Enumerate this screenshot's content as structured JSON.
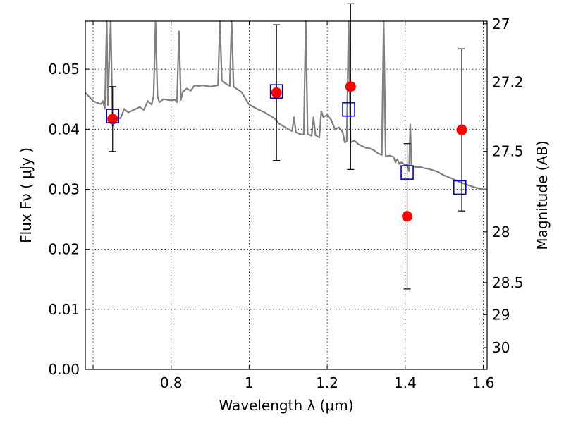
{
  "chart_data": {
    "type": "scatter",
    "xlabel": "Wavelength  λ (μm)",
    "ylabel": "Flux  Fν  ( μJy )",
    "ylabel_right": "Magnitude (AB)",
    "xlim": [
      0.58,
      1.61
    ],
    "ylim": [
      0.0,
      0.058
    ],
    "grid": true,
    "x_ticks": [
      {
        "value": 0.6,
        "label": ""
      },
      {
        "value": 0.8,
        "label": "0.8"
      },
      {
        "value": 1.0,
        "label": "1"
      },
      {
        "value": 1.2,
        "label": "1.2"
      },
      {
        "value": 1.4,
        "label": "1.4"
      },
      {
        "value": 1.6,
        "label": "1.6"
      }
    ],
    "y_ticks": [
      {
        "value": 0.0,
        "label": "0.00"
      },
      {
        "value": 0.01,
        "label": "0.01"
      },
      {
        "value": 0.02,
        "label": "0.02"
      },
      {
        "value": 0.03,
        "label": "0.03"
      },
      {
        "value": 0.04,
        "label": "0.04"
      },
      {
        "value": 0.05,
        "label": "0.05"
      }
    ],
    "right_ticks": [
      {
        "mag": 27,
        "label": "27"
      },
      {
        "mag": 27.2,
        "label": "27.2"
      },
      {
        "mag": 27.5,
        "label": "27.5"
      },
      {
        "mag": 28,
        "label": "28"
      },
      {
        "mag": 28.5,
        "label": "28.5"
      },
      {
        "mag": 29,
        "label": "29"
      },
      {
        "mag": 30,
        "label": "30"
      }
    ],
    "series": [
      {
        "kind": "spectrum",
        "color": "#808080",
        "points": [
          [
            0.58,
            0.0461
          ],
          [
            0.6,
            0.0447
          ],
          [
            0.61,
            0.0444
          ],
          [
            0.62,
            0.0442
          ],
          [
            0.625,
            0.0447
          ],
          [
            0.63,
            0.0434
          ],
          [
            0.635,
            0.058
          ],
          [
            0.638,
            0.044
          ],
          [
            0.642,
            0.0525
          ],
          [
            0.645,
            0.058
          ],
          [
            0.65,
            0.0405
          ],
          [
            0.66,
            0.042
          ],
          [
            0.67,
            0.0418
          ],
          [
            0.68,
            0.0434
          ],
          [
            0.69,
            0.0428
          ],
          [
            0.7,
            0.0431
          ],
          [
            0.72,
            0.0437
          ],
          [
            0.73,
            0.0432
          ],
          [
            0.74,
            0.0447
          ],
          [
            0.75,
            0.0441
          ],
          [
            0.755,
            0.0455
          ],
          [
            0.76,
            0.0578
          ],
          [
            0.765,
            0.0455
          ],
          [
            0.77,
            0.0445
          ],
          [
            0.78,
            0.045
          ],
          [
            0.8,
            0.0448
          ],
          [
            0.81,
            0.0449
          ],
          [
            0.815,
            0.0445
          ],
          [
            0.82,
            0.0563
          ],
          [
            0.825,
            0.0449
          ],
          [
            0.83,
            0.0462
          ],
          [
            0.84,
            0.0468
          ],
          [
            0.85,
            0.0464
          ],
          [
            0.86,
            0.0473
          ],
          [
            0.87,
            0.0472
          ],
          [
            0.88,
            0.0473
          ],
          [
            0.9,
            0.0471
          ],
          [
            0.92,
            0.0473
          ],
          [
            0.925,
            0.058
          ],
          [
            0.93,
            0.0481
          ],
          [
            0.94,
            0.0476
          ],
          [
            0.95,
            0.0472
          ],
          [
            0.955,
            0.058
          ],
          [
            0.96,
            0.0471
          ],
          [
            0.98,
            0.0462
          ],
          [
            1.0,
            0.0441
          ],
          [
            1.02,
            0.0434
          ],
          [
            1.04,
            0.0428
          ],
          [
            1.06,
            0.042
          ],
          [
            1.07,
            0.0415
          ],
          [
            1.075,
            0.041
          ],
          [
            1.08,
            0.0408
          ],
          [
            1.09,
            0.0404
          ],
          [
            1.1,
            0.04
          ],
          [
            1.11,
            0.0397
          ],
          [
            1.115,
            0.042
          ],
          [
            1.12,
            0.0395
          ],
          [
            1.13,
            0.0392
          ],
          [
            1.14,
            0.0391
          ],
          [
            1.145,
            0.058
          ],
          [
            1.15,
            0.0392
          ],
          [
            1.16,
            0.0389
          ],
          [
            1.165,
            0.042
          ],
          [
            1.17,
            0.039
          ],
          [
            1.18,
            0.0386
          ],
          [
            1.185,
            0.043
          ],
          [
            1.19,
            0.042
          ],
          [
            1.2,
            0.0424
          ],
          [
            1.21,
            0.0416
          ],
          [
            1.22,
            0.04
          ],
          [
            1.23,
            0.0403
          ],
          [
            1.24,
            0.0395
          ],
          [
            1.245,
            0.0378
          ],
          [
            1.25,
            0.038
          ],
          [
            1.255,
            0.058
          ],
          [
            1.26,
            0.0378
          ],
          [
            1.27,
            0.0381
          ],
          [
            1.28,
            0.0375
          ],
          [
            1.29,
            0.0372
          ],
          [
            1.3,
            0.0369
          ],
          [
            1.31,
            0.0368
          ],
          [
            1.32,
            0.0365
          ],
          [
            1.33,
            0.036
          ],
          [
            1.34,
            0.0357
          ],
          [
            1.345,
            0.058
          ],
          [
            1.35,
            0.0355
          ],
          [
            1.36,
            0.0356
          ],
          [
            1.37,
            0.0354
          ],
          [
            1.375,
            0.0345
          ],
          [
            1.38,
            0.035
          ],
          [
            1.385,
            0.0342
          ],
          [
            1.39,
            0.0345
          ],
          [
            1.4,
            0.034
          ],
          [
            1.405,
            0.0342
          ],
          [
            1.41,
            0.033
          ],
          [
            1.413,
            0.0408
          ],
          [
            1.416,
            0.034
          ],
          [
            1.42,
            0.0338
          ],
          [
            1.43,
            0.0337
          ],
          [
            1.44,
            0.0337
          ],
          [
            1.45,
            0.0335
          ],
          [
            1.46,
            0.0334
          ],
          [
            1.48,
            0.033
          ],
          [
            1.5,
            0.0323
          ],
          [
            1.52,
            0.0318
          ],
          [
            1.54,
            0.0312
          ],
          [
            1.56,
            0.0307
          ],
          [
            1.58,
            0.0303
          ],
          [
            1.59,
            0.0301
          ],
          [
            1.6,
            0.03
          ],
          [
            1.61,
            0.03
          ]
        ]
      },
      {
        "kind": "measured",
        "color": "#ff0000",
        "marker": "circle",
        "points": [
          {
            "x": 0.65,
            "y": 0.0417,
            "err": 0.0054
          },
          {
            "x": 1.07,
            "y": 0.0461,
            "err": 0.0113
          },
          {
            "x": 1.26,
            "y": 0.0471,
            "err": 0.0138
          },
          {
            "x": 1.405,
            "y": 0.0255,
            "err": 0.0121
          },
          {
            "x": 1.545,
            "y": 0.0399,
            "err": 0.0135
          }
        ]
      },
      {
        "kind": "model",
        "color": "#0000cc",
        "marker": "square",
        "points": [
          {
            "x": 0.65,
            "y": 0.0422
          },
          {
            "x": 1.07,
            "y": 0.0463
          },
          {
            "x": 1.255,
            "y": 0.0433
          },
          {
            "x": 1.405,
            "y": 0.0328
          },
          {
            "x": 1.54,
            "y": 0.0303
          }
        ]
      }
    ]
  }
}
